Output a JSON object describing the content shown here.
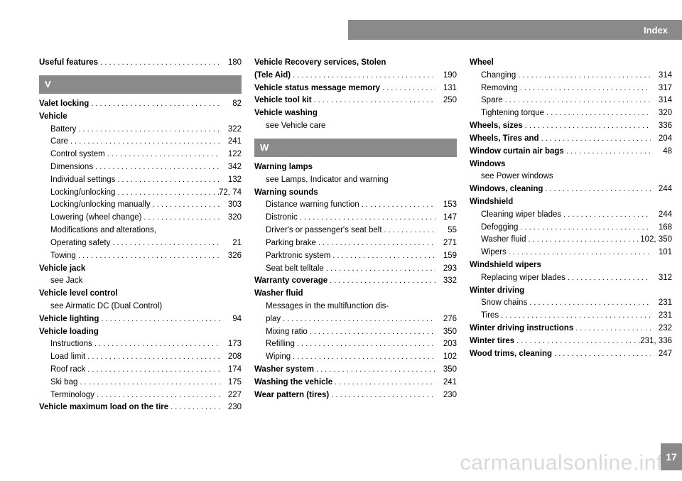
{
  "header": {
    "title": "Index"
  },
  "pageNumber": "17",
  "watermark": "carmanualsonline.info",
  "columns": [
    {
      "items": [
        {
          "type": "entry",
          "label": "Useful features",
          "bold": true,
          "page": "180"
        },
        {
          "type": "letter",
          "text": "V"
        },
        {
          "type": "entry",
          "label": "Valet locking",
          "bold": true,
          "page": "82"
        },
        {
          "type": "heading",
          "label": "Vehicle"
        },
        {
          "type": "sub",
          "label": "Battery",
          "page": "322"
        },
        {
          "type": "sub",
          "label": "Care",
          "page": "241"
        },
        {
          "type": "sub",
          "label": "Control system",
          "page": "122"
        },
        {
          "type": "sub",
          "label": "Dimensions",
          "page": "342"
        },
        {
          "type": "sub",
          "label": "Individual settings",
          "page": "132"
        },
        {
          "type": "sub",
          "label": "Locking/unlocking",
          "page": "72, 74"
        },
        {
          "type": "sub",
          "label": "Locking/unlocking manually",
          "page": "303"
        },
        {
          "type": "sub",
          "label": "Lowering (wheel change)",
          "page": "320"
        },
        {
          "type": "wrap",
          "label": "Modifications and alterations,"
        },
        {
          "type": "sub",
          "label": "Operating safety",
          "page": "21"
        },
        {
          "type": "sub",
          "label": "Towing",
          "page": "326"
        },
        {
          "type": "heading",
          "label": "Vehicle jack"
        },
        {
          "type": "see",
          "label": "see Jack"
        },
        {
          "type": "heading",
          "label": "Vehicle level control"
        },
        {
          "type": "see",
          "label": "see Airmatic DC (Dual Control)"
        },
        {
          "type": "entry",
          "label": "Vehicle lighting",
          "bold": true,
          "page": "94"
        },
        {
          "type": "heading",
          "label": "Vehicle loading"
        },
        {
          "type": "sub",
          "label": "Instructions",
          "page": "173"
        },
        {
          "type": "sub",
          "label": "Load limit",
          "page": "208"
        },
        {
          "type": "sub",
          "label": "Roof rack",
          "page": "174"
        },
        {
          "type": "sub",
          "label": "Ski bag",
          "page": "175"
        },
        {
          "type": "sub",
          "label": "Terminology",
          "page": "227"
        },
        {
          "type": "entry",
          "label": "Vehicle maximum load on the tire",
          "bold": true,
          "page": "230"
        }
      ]
    },
    {
      "items": [
        {
          "type": "heading",
          "label": "Vehicle Recovery services, Stolen"
        },
        {
          "type": "entry",
          "label": "(Tele Aid)",
          "bold": true,
          "page": "190"
        },
        {
          "type": "entry",
          "label": "Vehicle status message memory",
          "bold": true,
          "page": "131"
        },
        {
          "type": "entry",
          "label": "Vehicle tool kit",
          "bold": true,
          "page": "250"
        },
        {
          "type": "heading",
          "label": "Vehicle washing"
        },
        {
          "type": "see",
          "label": "see Vehicle care"
        },
        {
          "type": "letter",
          "text": "W"
        },
        {
          "type": "heading",
          "label": "Warning lamps"
        },
        {
          "type": "see",
          "label": "see Lamps, Indicator and warning"
        },
        {
          "type": "heading",
          "label": "Warning sounds"
        },
        {
          "type": "sub",
          "label": "Distance warning function",
          "page": "153"
        },
        {
          "type": "sub",
          "label": "Distronic",
          "page": "147"
        },
        {
          "type": "sub",
          "label": "Driver's or passenger's seat belt",
          "page": "55"
        },
        {
          "type": "sub",
          "label": "Parking brake",
          "page": "271"
        },
        {
          "type": "sub",
          "label": "Parktronic system",
          "page": "159"
        },
        {
          "type": "sub",
          "label": "Seat belt telltale",
          "page": "293"
        },
        {
          "type": "entry",
          "label": "Warranty coverage",
          "bold": true,
          "page": "332"
        },
        {
          "type": "heading",
          "label": "Washer fluid"
        },
        {
          "type": "wrap",
          "label": "Messages in the multifunction dis-"
        },
        {
          "type": "sub",
          "label": "play",
          "page": "276"
        },
        {
          "type": "sub",
          "label": "Mixing ratio",
          "page": "350"
        },
        {
          "type": "sub",
          "label": "Refilling",
          "page": "203"
        },
        {
          "type": "sub",
          "label": "Wiping",
          "page": "102"
        },
        {
          "type": "entry",
          "label": "Washer system",
          "bold": true,
          "page": "350"
        },
        {
          "type": "entry",
          "label": "Washing the vehicle",
          "bold": true,
          "page": "241"
        },
        {
          "type": "entry",
          "label": "Wear pattern (tires)",
          "bold": true,
          "page": "230"
        }
      ]
    },
    {
      "items": [
        {
          "type": "heading",
          "label": "Wheel"
        },
        {
          "type": "sub",
          "label": "Changing",
          "page": "314"
        },
        {
          "type": "sub",
          "label": "Removing",
          "page": "317"
        },
        {
          "type": "sub",
          "label": "Spare",
          "page": "314"
        },
        {
          "type": "sub",
          "label": "Tightening torque",
          "page": "320"
        },
        {
          "type": "entry",
          "label": "Wheels, sizes",
          "bold": true,
          "page": "336"
        },
        {
          "type": "entry",
          "label": "Wheels, Tires and",
          "bold": true,
          "page": "204"
        },
        {
          "type": "entry",
          "label": "Window curtain air bags",
          "bold": true,
          "page": "48"
        },
        {
          "type": "heading",
          "label": "Windows"
        },
        {
          "type": "see",
          "label": "see Power windows"
        },
        {
          "type": "entry",
          "label": "Windows, cleaning",
          "bold": true,
          "page": "244"
        },
        {
          "type": "heading",
          "label": "Windshield"
        },
        {
          "type": "sub",
          "label": "Cleaning wiper blades",
          "page": "244"
        },
        {
          "type": "sub",
          "label": "Defogging",
          "page": "168"
        },
        {
          "type": "sub",
          "label": "Washer fluid",
          "page": "102, 350"
        },
        {
          "type": "sub",
          "label": "Wipers",
          "page": "101"
        },
        {
          "type": "heading",
          "label": "Windshield wipers"
        },
        {
          "type": "sub",
          "label": "Replacing wiper blades",
          "page": "312"
        },
        {
          "type": "heading",
          "label": "Winter driving"
        },
        {
          "type": "sub",
          "label": "Snow chains",
          "page": "231"
        },
        {
          "type": "sub",
          "label": "Tires",
          "page": "231"
        },
        {
          "type": "entry",
          "label": "Winter driving instructions",
          "bold": true,
          "page": "232"
        },
        {
          "type": "entry",
          "label": "Winter tires",
          "bold": true,
          "page": "231, 336"
        },
        {
          "type": "entry",
          "label": "Wood trims, cleaning",
          "bold": true,
          "page": "247"
        }
      ]
    }
  ]
}
